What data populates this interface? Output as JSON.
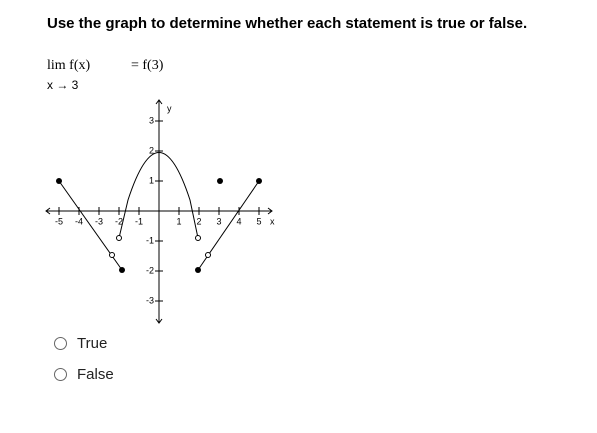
{
  "question": {
    "title": "Use the graph to determine whether each statement is true or false.",
    "limit": "lim  f(x)",
    "approach": "x → 3",
    "equals": "= f(3)"
  },
  "graph": {
    "x_label": "x",
    "y_label": "y",
    "xticks": [
      -5,
      -4,
      -3,
      -2,
      -1,
      1,
      2,
      3,
      4,
      5
    ],
    "yticks": [
      3,
      2,
      1,
      -1,
      -2,
      -3
    ]
  },
  "options": [
    "True",
    "False"
  ]
}
